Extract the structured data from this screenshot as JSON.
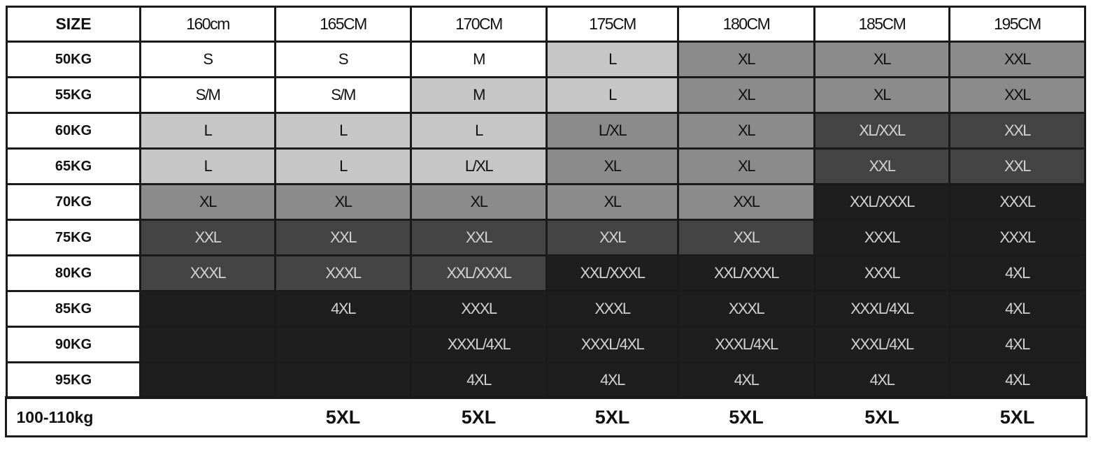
{
  "chart_data": {
    "type": "table",
    "corner_label": "SIZE",
    "columns": [
      "160cm",
      "165CM",
      "170CM",
      "175CM",
      "180CM",
      "185CM",
      "195CM"
    ],
    "rows": [
      {
        "label": "50KG",
        "values": [
          "S",
          "S",
          "M",
          "L",
          "XL",
          "XL",
          "XXL"
        ],
        "shades": [
          0,
          0,
          0,
          1,
          2,
          2,
          2
        ]
      },
      {
        "label": "55KG",
        "values": [
          "S/M",
          "S/M",
          "M",
          "L",
          "XL",
          "XL",
          "XXL"
        ],
        "shades": [
          0,
          0,
          1,
          1,
          2,
          2,
          2
        ]
      },
      {
        "label": "60KG",
        "values": [
          "L",
          "L",
          "L",
          "L/XL",
          "XL",
          "XL/XXL",
          "XXL"
        ],
        "shades": [
          1,
          1,
          1,
          2,
          2,
          3,
          3
        ]
      },
      {
        "label": "65KG",
        "values": [
          "L",
          "L",
          "L/XL",
          "XL",
          "XL",
          "XXL",
          "XXL"
        ],
        "shades": [
          1,
          1,
          1,
          2,
          2,
          3,
          3
        ]
      },
      {
        "label": "70KG",
        "values": [
          "XL",
          "XL",
          "XL",
          "XL",
          "XXL",
          "XXL/XXXL",
          "XXXL"
        ],
        "shades": [
          2,
          2,
          2,
          2,
          2,
          4,
          4
        ]
      },
      {
        "label": "75KG",
        "values": [
          "XXL",
          "XXL",
          "XXL",
          "XXL",
          "XXL",
          "XXXL",
          "XXXL"
        ],
        "shades": [
          3,
          3,
          3,
          3,
          3,
          4,
          4
        ]
      },
      {
        "label": "80KG",
        "values": [
          "XXXL",
          "XXXL",
          "XXL/XXXL",
          "XXL/XXXL",
          "XXL/XXXL",
          "XXXL",
          "4XL"
        ],
        "shades": [
          3,
          3,
          3,
          4,
          4,
          4,
          4
        ]
      },
      {
        "label": "85KG",
        "values": [
          "",
          "4XL",
          "XXXL",
          "XXXL",
          "XXXL",
          "XXXL/4XL",
          "4XL"
        ],
        "shades": [
          4,
          4,
          4,
          4,
          4,
          4,
          4
        ]
      },
      {
        "label": "90KG",
        "values": [
          "",
          "",
          "XXXL/4XL",
          "XXXL/4XL",
          "XXXL/4XL",
          "XXXL/4XL",
          "4XL"
        ],
        "shades": [
          4,
          4,
          4,
          4,
          4,
          4,
          4
        ]
      },
      {
        "label": "95KG",
        "values": [
          "",
          "",
          "4XL",
          "4XL",
          "4XL",
          "4XL",
          "4XL"
        ],
        "shades": [
          4,
          4,
          4,
          4,
          4,
          4,
          4
        ]
      }
    ],
    "footer_row": {
      "label": "100-110kg",
      "values": [
        "",
        "5XL",
        "5XL",
        "5XL",
        "5XL",
        "5XL",
        "5XL"
      ]
    },
    "shade_colors": [
      "#ffffff",
      "#c6c6c6",
      "#8b8b8b",
      "#444444",
      "#1e1e1e"
    ],
    "text_colors": [
      "#111111",
      "#111111",
      "#111111",
      "#d2d2d2",
      "#d2d2d2"
    ]
  }
}
